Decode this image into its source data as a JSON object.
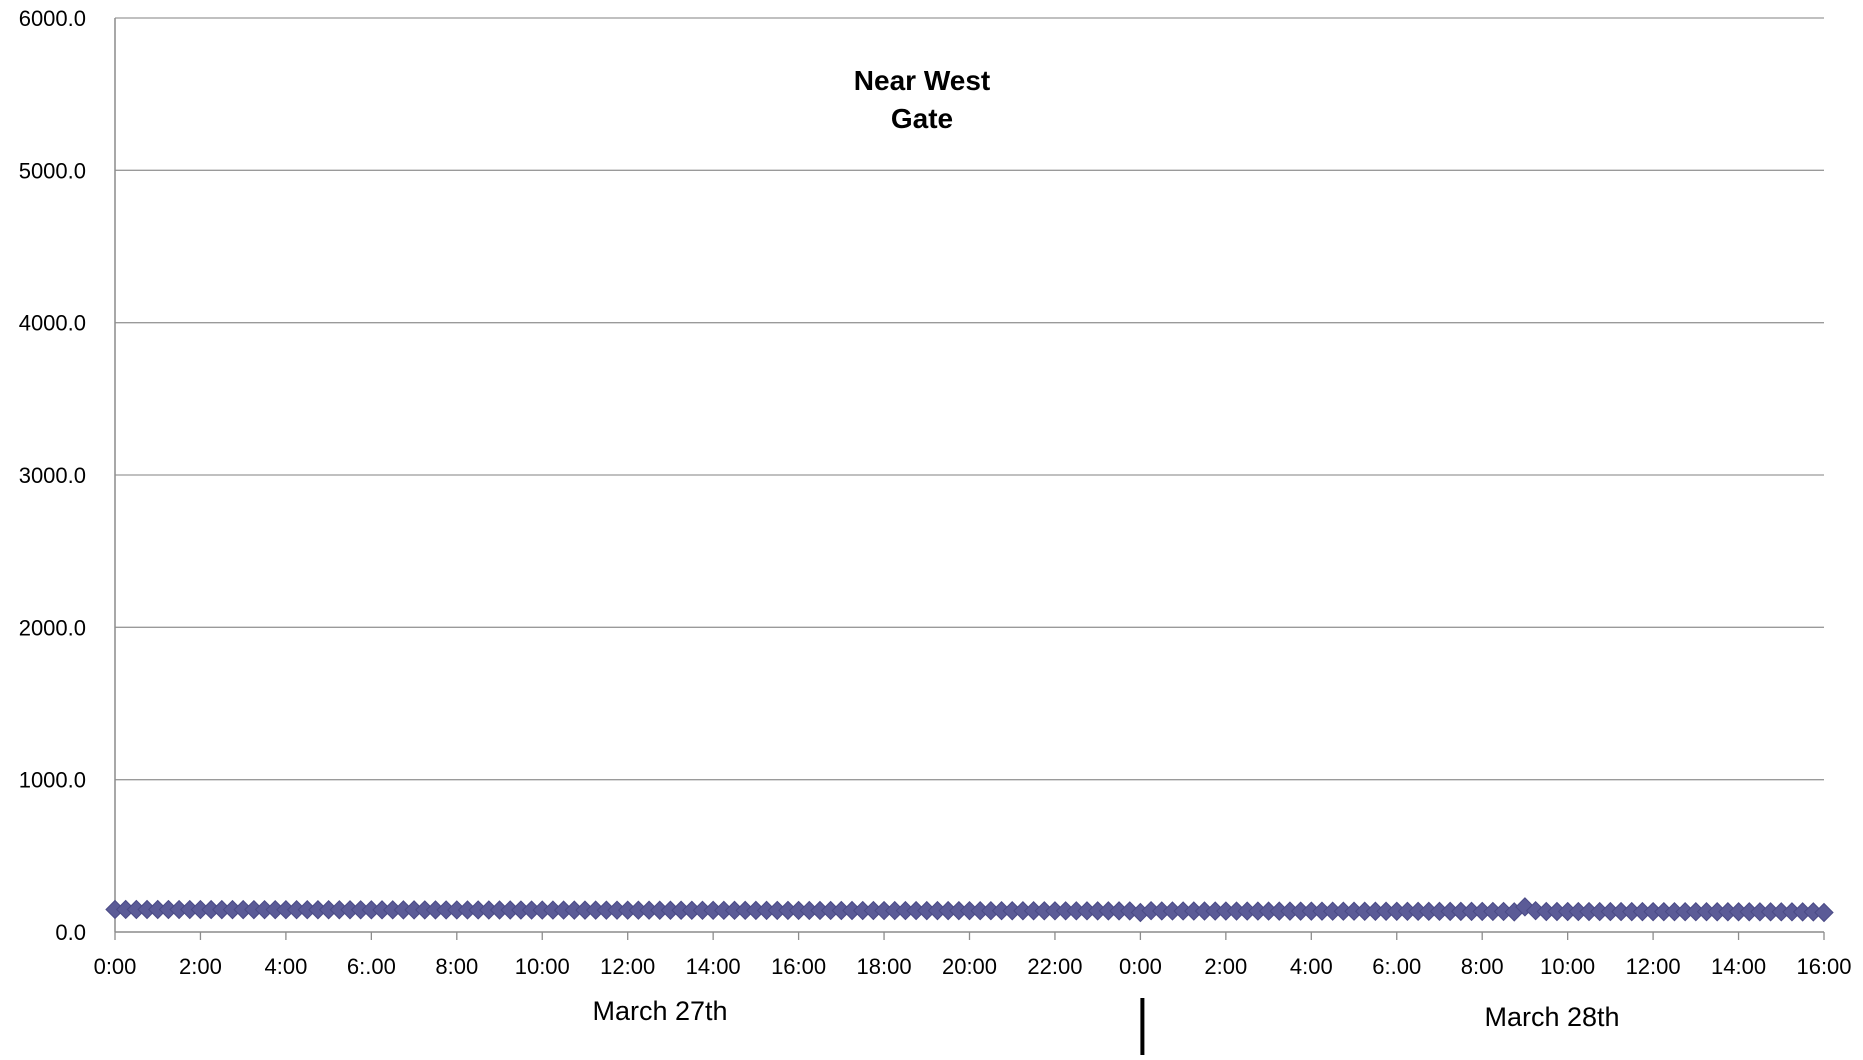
{
  "chart_data": {
    "type": "line",
    "title_lines": [
      "Near West",
      "Gate"
    ],
    "xlabel": "",
    "ylabel": "",
    "ylim": [
      0,
      6000
    ],
    "y_ticks": [
      "0.0",
      "1000.0",
      "2000.0",
      "3000.0",
      "4000.0",
      "5000.0",
      "6000.0"
    ],
    "x_ticks": [
      "0:00",
      "2:00",
      "4:00",
      "6:.00",
      "8:00",
      "10:00",
      "12:00",
      "14:00",
      "16:00",
      "18:00",
      "20:00",
      "22:00",
      "0:00",
      "2:00",
      "4:00",
      "6:.00",
      "8:00",
      "10:00",
      "12:00",
      "14:00",
      "16:00"
    ],
    "x_range_hours": [
      0,
      40
    ],
    "day_labels": [
      "March 27th",
      "March 28th"
    ],
    "day_divider_hour": 24,
    "grid": true,
    "legend": "none",
    "series_color": "#5b5b97",
    "marker": "diamond",
    "series": [
      {
        "sample_interval_hours": 0.25,
        "baseline_start": 148,
        "baseline_end": 132,
        "notes_points": [
          [
            24.0,
            128
          ],
          [
            24.25,
            140
          ],
          [
            32.75,
            132
          ],
          [
            33.0,
            165
          ],
          [
            33.25,
            140
          ],
          [
            40.0,
            128
          ]
        ]
      }
    ]
  }
}
